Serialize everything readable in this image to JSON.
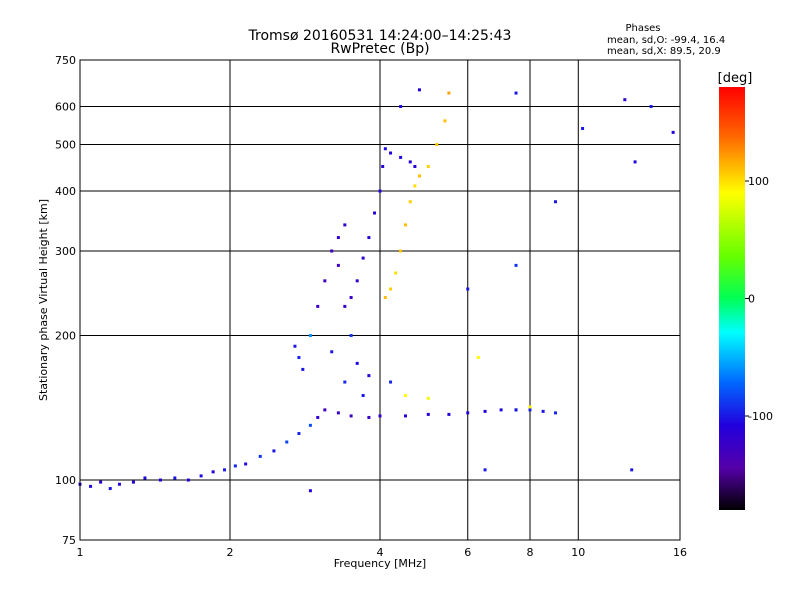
{
  "header": {
    "title_line1": "Tromsø 20160531 14:24:00–14:25:43",
    "title_line2": "RwPretec (Bp)"
  },
  "stats": {
    "heading": "Phases",
    "o_line": "mean, sd,O: -99.4, 16.4",
    "x_line": "mean, sd,X: 89.5, 20.9"
  },
  "colorbar": {
    "unit_label": "deg",
    "ticks": [
      {
        "value": 100,
        "label": "100"
      },
      {
        "value": 0,
        "label": "0"
      },
      {
        "value": -100,
        "label": "-100"
      }
    ],
    "range": [
      -180,
      180
    ]
  },
  "chart_data": {
    "type": "scatter",
    "xlabel": "Frequency [MHz]",
    "ylabel": "Stationary phase Virtual Height [km]",
    "xscale": "log",
    "yscale": "log",
    "xlim": [
      1,
      16
    ],
    "ylim": [
      75,
      750
    ],
    "xticks": [
      {
        "value": 1,
        "label": "1"
      },
      {
        "value": 2,
        "label": "2"
      },
      {
        "value": 4,
        "label": "4"
      },
      {
        "value": 6,
        "label": "6"
      },
      {
        "value": 8,
        "label": "8"
      },
      {
        "value": 10,
        "label": "10"
      },
      {
        "value": 16,
        "label": "16"
      }
    ],
    "yticks": [
      {
        "value": 75,
        "label": "75"
      },
      {
        "value": 100,
        "label": "100"
      },
      {
        "value": 200,
        "label": "200"
      },
      {
        "value": 300,
        "label": "300"
      },
      {
        "value": 400,
        "label": "400"
      },
      {
        "value": 500,
        "label": "500"
      },
      {
        "value": 600,
        "label": "600"
      },
      {
        "value": 750,
        "label": "750"
      }
    ],
    "grid": true,
    "color_by": "phase [deg]",
    "series": [
      {
        "points": [
          [
            1.0,
            98,
            -110
          ],
          [
            1.05,
            97,
            -105
          ],
          [
            1.1,
            99,
            -115
          ],
          [
            1.15,
            96,
            -100
          ],
          [
            1.2,
            98,
            -112
          ],
          [
            1.28,
            99,
            -108
          ],
          [
            1.35,
            101,
            -105
          ],
          [
            1.45,
            100,
            -110
          ],
          [
            1.55,
            101,
            -100
          ],
          [
            1.65,
            100,
            -115
          ],
          [
            1.75,
            102,
            -105
          ],
          [
            1.85,
            104,
            -110
          ],
          [
            1.95,
            105,
            -100
          ],
          [
            2.05,
            107,
            -95
          ],
          [
            2.15,
            108,
            -105
          ],
          [
            2.3,
            112,
            -90
          ],
          [
            2.45,
            115,
            -100
          ],
          [
            2.6,
            120,
            -85
          ],
          [
            2.75,
            125,
            -95
          ],
          [
            2.9,
            130,
            -80
          ],
          [
            3.0,
            135,
            -120
          ],
          [
            3.1,
            140,
            -130
          ],
          [
            3.3,
            138,
            -125
          ],
          [
            3.5,
            136,
            -128
          ],
          [
            3.8,
            135,
            -122
          ],
          [
            4.0,
            136,
            -120
          ],
          [
            4.5,
            136,
            -115
          ],
          [
            5.0,
            137,
            -110
          ],
          [
            5.5,
            137,
            -112
          ],
          [
            6.0,
            138,
            -108
          ],
          [
            6.5,
            139,
            -110
          ],
          [
            7.0,
            140,
            -105
          ],
          [
            7.5,
            140,
            -100
          ],
          [
            8.0,
            140,
            -95
          ],
          [
            8.5,
            139,
            -100
          ],
          [
            9.0,
            138,
            -95
          ]
        ]
      },
      {
        "points": [
          [
            2.7,
            190,
            -100
          ],
          [
            2.75,
            180,
            -95
          ],
          [
            2.8,
            170,
            -100
          ],
          [
            2.9,
            200,
            -60
          ],
          [
            3.0,
            230,
            -125
          ],
          [
            3.1,
            260,
            -130
          ],
          [
            3.2,
            300,
            -125
          ],
          [
            3.3,
            320,
            -120
          ],
          [
            3.4,
            340,
            -118
          ],
          [
            3.3,
            280,
            -130
          ],
          [
            3.4,
            230,
            -125
          ],
          [
            3.5,
            240,
            -122
          ],
          [
            3.6,
            260,
            -120
          ],
          [
            3.7,
            290,
            -115
          ],
          [
            3.8,
            320,
            -112
          ],
          [
            3.9,
            360,
            -110
          ],
          [
            4.0,
            400,
            -108
          ],
          [
            4.05,
            450,
            -110
          ],
          [
            4.1,
            490,
            -105
          ],
          [
            4.2,
            480,
            -110
          ],
          [
            4.4,
            470,
            -105
          ],
          [
            4.6,
            460,
            -110
          ],
          [
            4.7,
            450,
            -108
          ],
          [
            4.8,
            650,
            -110
          ],
          [
            4.4,
            600,
            -105
          ]
        ]
      },
      {
        "points": [
          [
            4.1,
            240,
            110
          ],
          [
            4.2,
            250,
            105
          ],
          [
            4.3,
            270,
            100
          ],
          [
            4.4,
            300,
            108
          ],
          [
            4.5,
            340,
            110
          ],
          [
            4.6,
            380,
            105
          ],
          [
            4.7,
            410,
            100
          ],
          [
            4.8,
            430,
            110
          ],
          [
            5.0,
            450,
            105
          ],
          [
            5.2,
            500,
            108
          ],
          [
            5.4,
            560,
            110
          ],
          [
            5.5,
            640,
            120
          ],
          [
            4.5,
            150,
            90
          ],
          [
            5.0,
            148,
            85
          ],
          [
            8.0,
            142,
            95
          ],
          [
            6.3,
            180,
            90
          ]
        ]
      },
      {
        "points": [
          [
            3.2,
            185,
            -100
          ],
          [
            3.4,
            160,
            -95
          ],
          [
            3.5,
            200,
            -90
          ],
          [
            3.6,
            175,
            -105
          ],
          [
            3.7,
            150,
            -100
          ],
          [
            3.8,
            165,
            -110
          ],
          [
            4.2,
            160,
            -95
          ],
          [
            6.0,
            250,
            -100
          ],
          [
            7.5,
            280,
            -90
          ],
          [
            7.5,
            640,
            -100
          ],
          [
            9.0,
            380,
            -100
          ],
          [
            12.4,
            620,
            -120
          ],
          [
            13.0,
            460,
            -105
          ],
          [
            14.0,
            600,
            -100
          ],
          [
            15.5,
            530,
            -110
          ],
          [
            10.2,
            540,
            -100
          ],
          [
            7.5,
            140,
            -100
          ],
          [
            12.8,
            105,
            -100
          ],
          [
            6.5,
            105,
            -100
          ],
          [
            2.9,
            95,
            -110
          ]
        ]
      }
    ]
  }
}
